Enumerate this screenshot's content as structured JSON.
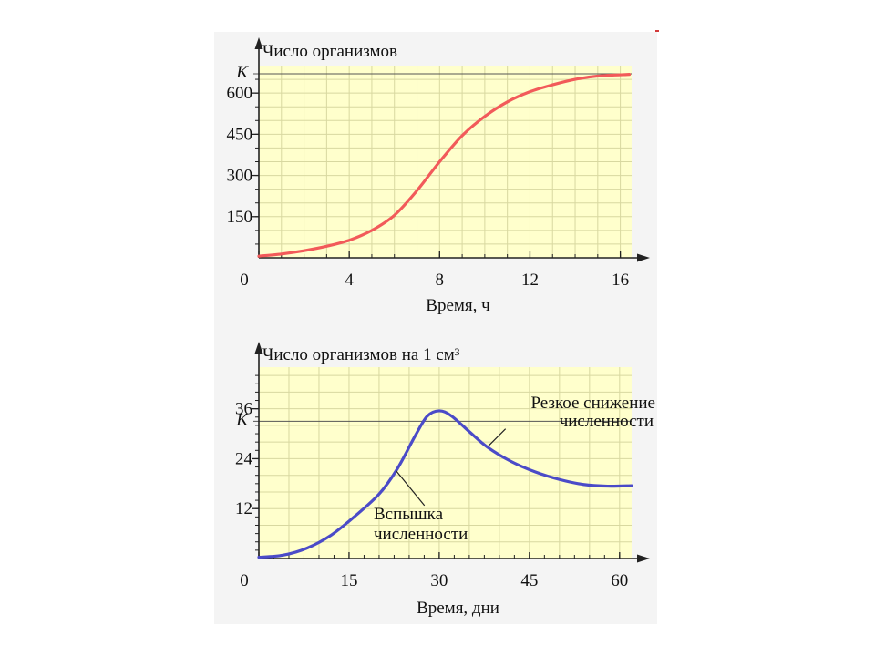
{
  "chart_data": [
    {
      "type": "line",
      "ylabel": "Число организмов",
      "xlabel": "Время, ч",
      "xlim": [
        0,
        16.5
      ],
      "ylim": [
        0,
        700
      ],
      "x_ticks": [
        "0",
        "4",
        "8",
        "12",
        "16"
      ],
      "x_tick_values": [
        0,
        4,
        8,
        12,
        16
      ],
      "y_ticks": [
        "150",
        "300",
        "450",
        "600"
      ],
      "y_tick_values": [
        150,
        300,
        450,
        600
      ],
      "k_label": "K",
      "k_value": 670,
      "grid": true,
      "background": "#ffffcc",
      "line_color": "#f25a5a",
      "series": [
        {
          "x": [
            0,
            1,
            2,
            3,
            4,
            5,
            6,
            7,
            8,
            9,
            10,
            11,
            12,
            13,
            14,
            15,
            16.4
          ],
          "y": [
            6,
            14,
            26,
            42,
            64,
            100,
            155,
            245,
            350,
            445,
            515,
            568,
            605,
            630,
            650,
            662,
            668
          ]
        }
      ]
    },
    {
      "type": "line",
      "ylabel": "Число организмов на 1 см³",
      "xlabel": "Время, дни",
      "xlim": [
        0,
        62
      ],
      "ylim": [
        0,
        46
      ],
      "x_ticks": [
        "0",
        "15",
        "30",
        "45",
        "60"
      ],
      "x_tick_values": [
        0,
        15,
        30,
        45,
        60
      ],
      "y_ticks": [
        "12",
        "24",
        "36"
      ],
      "y_tick_values": [
        12,
        24,
        36
      ],
      "k_label": "K",
      "k_value": 33,
      "grid": true,
      "background": "#ffffcc",
      "line_color": "#4b4bc8",
      "series": [
        {
          "x": [
            0,
            4,
            8,
            12,
            16,
            20,
            23,
            26,
            28,
            30,
            32,
            35,
            38,
            42,
            46,
            50,
            54,
            58,
            62
          ],
          "y": [
            0.3,
            0.8,
            2.5,
            5.6,
            10.2,
            15.5,
            21.5,
            29.5,
            34.2,
            35.5,
            34.3,
            30.5,
            26.8,
            23.3,
            20.8,
            19.0,
            17.8,
            17.4,
            17.5
          ]
        }
      ],
      "annotations": [
        {
          "text": [
            "Резкое снижение",
            "численности"
          ],
          "x": 38,
          "y": 26.8
        },
        {
          "text": [
            "Вспышка",
            "численности"
          ],
          "x": 23,
          "y": 21.5
        }
      ]
    }
  ]
}
